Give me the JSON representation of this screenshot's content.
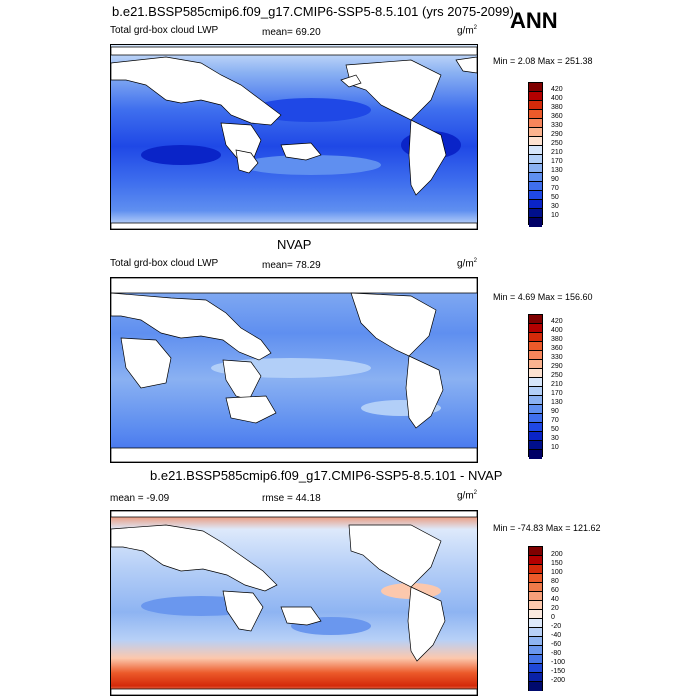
{
  "header": {
    "main_title": "b.e21.BSSP585cmip6.f09_g17.CMIP6-SSP5-8.5.101 (yrs 2075-2099)",
    "season": "ANN"
  },
  "panels": [
    {
      "id": "model",
      "title": "",
      "left_label": "Total grd-box cloud LWP",
      "center_label": "mean=  69.20",
      "units": "g/m",
      "units_exp": "2",
      "minmax": "Min =   2.08 Max = 251.38",
      "colorbar": {
        "levels": [
          "420",
          "400",
          "380",
          "360",
          "330",
          "290",
          "250",
          "210",
          "170",
          "130",
          "90",
          "70",
          "50",
          "30",
          "10"
        ],
        "colors": [
          "#7f0000",
          "#b30000",
          "#d42a0a",
          "#ec5a2a",
          "#f7855b",
          "#fbb38f",
          "#fde2d1",
          "#d6e6fb",
          "#b2cff8",
          "#8ab1f2",
          "#5f8ff0",
          "#3f6fee",
          "#1f48e6",
          "#0a24c8",
          "#000f8c",
          "#000066"
        ]
      }
    },
    {
      "id": "obs",
      "title": "NVAP",
      "left_label": "Total grd-box cloud LWP",
      "center_label": "mean=  78.29",
      "units": "g/m",
      "units_exp": "2",
      "minmax": "Min =   4.69 Max = 156.60",
      "colorbar": {
        "levels": [
          "420",
          "400",
          "380",
          "360",
          "330",
          "290",
          "250",
          "210",
          "170",
          "130",
          "90",
          "70",
          "50",
          "30",
          "10"
        ],
        "colors": [
          "#7f0000",
          "#b30000",
          "#d42a0a",
          "#ec5a2a",
          "#f7855b",
          "#fbb38f",
          "#fde2d1",
          "#d6e6fb",
          "#b2cff8",
          "#8ab1f2",
          "#5f8ff0",
          "#3f6fee",
          "#1f48e6",
          "#0a24c8",
          "#000f8c",
          "#000066"
        ]
      }
    },
    {
      "id": "diff",
      "title": "b.e21.BSSP585cmip6.f09_g17.CMIP6-SSP5-8.5.101 - NVAP",
      "left_label": "mean =  -9.09",
      "center_label": "rmse =  44.18",
      "units": "g/m",
      "units_exp": "2",
      "minmax": "Min = -74.83 Max = 121.62",
      "colorbar": {
        "levels": [
          "200",
          "150",
          "100",
          "80",
          "60",
          "40",
          "20",
          "0",
          "-20",
          "-40",
          "-60",
          "-80",
          "-100",
          "-150",
          "-200"
        ],
        "colors": [
          "#7f0000",
          "#b30000",
          "#d42a0a",
          "#ec5a2a",
          "#f07a4a",
          "#f7a07a",
          "#fcc8ad",
          "#fbeae0",
          "#dde9fb",
          "#b7d0f7",
          "#8eb4f2",
          "#6a97ee",
          "#4575e8",
          "#1f48d8",
          "#0a22a8",
          "#000a6e"
        ]
      }
    }
  ]
}
